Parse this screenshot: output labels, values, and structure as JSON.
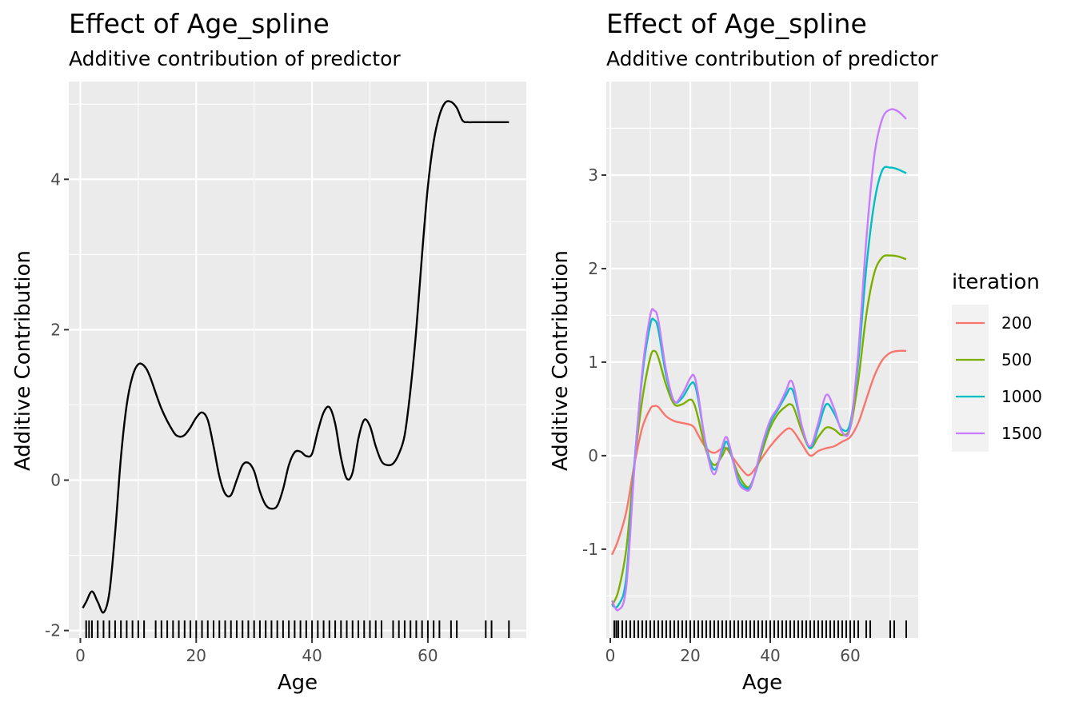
{
  "left_panel": {
    "title": "Effect of Age_spline",
    "subtitle": "Additive contribution of predictor",
    "xlabel": "Age",
    "ylabel": "Additive Contribution"
  },
  "right_panel": {
    "title": "Effect of Age_spline",
    "subtitle": "Additive contribution of predictor",
    "xlabel": "Age",
    "ylabel": "Additive Contribution"
  },
  "legend": {
    "title": "iteration",
    "items": [
      {
        "label": "200",
        "color": "#F8766D"
      },
      {
        "label": "500",
        "color": "#7CAE00"
      },
      {
        "label": "1000",
        "color": "#00BFC4"
      },
      {
        "label": "1500",
        "color": "#C77CFF"
      }
    ]
  },
  "chart_data": [
    {
      "type": "line",
      "title": "Effect of Age_spline",
      "subtitle": "Additive contribution of predictor",
      "xlabel": "Age",
      "ylabel": "Additive Contribution",
      "xlim": [
        -2,
        77
      ],
      "ylim": [
        -2.1,
        5.3
      ],
      "x_ticks": [
        0,
        20,
        40,
        60
      ],
      "y_ticks": [
        -2,
        0,
        2,
        4
      ],
      "grid": true,
      "rug": true,
      "x": [
        0.42,
        1,
        2,
        3,
        4,
        5,
        6,
        7,
        8,
        9,
        10,
        11,
        12,
        14,
        16,
        17,
        18,
        19,
        20,
        21,
        22,
        23,
        24,
        25,
        26,
        27,
        28,
        29,
        30,
        31,
        32,
        33,
        34,
        35,
        36,
        37,
        38,
        39,
        40,
        41,
        42,
        43,
        44,
        45,
        46,
        47,
        48,
        49,
        50,
        51,
        52,
        53,
        54,
        55,
        56,
        57,
        58,
        59,
        60,
        61,
        62,
        63,
        64,
        65,
        66,
        67,
        68,
        69,
        70,
        71,
        72,
        73,
        74
      ],
      "values": [
        -1.7,
        -1.62,
        -1.48,
        -1.62,
        -1.76,
        -1.5,
        -0.7,
        0.3,
        1.0,
        1.38,
        1.54,
        1.52,
        1.38,
        0.95,
        0.65,
        0.58,
        0.6,
        0.7,
        0.83,
        0.9,
        0.8,
        0.45,
        0.05,
        -0.18,
        -0.2,
        0.0,
        0.2,
        0.23,
        0.12,
        -0.15,
        -0.33,
        -0.38,
        -0.34,
        -0.12,
        0.2,
        0.37,
        0.38,
        0.32,
        0.35,
        0.65,
        0.9,
        0.97,
        0.75,
        0.3,
        0.02,
        0.1,
        0.55,
        0.8,
        0.72,
        0.45,
        0.25,
        0.2,
        0.22,
        0.35,
        0.6,
        1.2,
        2.0,
        3.0,
        3.9,
        4.5,
        4.85,
        5.02,
        5.03,
        4.95,
        4.78,
        4.76,
        4.76,
        4.76,
        4.76,
        4.76,
        4.76,
        4.76,
        4.76
      ],
      "rug_x": [
        1,
        1.5,
        2,
        3,
        4,
        5,
        6,
        7,
        8,
        9,
        10,
        11,
        13,
        14,
        15,
        16,
        17,
        18,
        19,
        20,
        21,
        22,
        23,
        24,
        25,
        26,
        27,
        28,
        29,
        30,
        31,
        32,
        33,
        34,
        35,
        36,
        37,
        38,
        39,
        40,
        41,
        42,
        43,
        44,
        45,
        46,
        47,
        48,
        49,
        50,
        51,
        52,
        54,
        55,
        56,
        57,
        58,
        59,
        60,
        61,
        62,
        64,
        65,
        70,
        71,
        74
      ]
    },
    {
      "type": "line",
      "title": "Effect of Age_spline",
      "subtitle": "Additive contribution of predictor",
      "xlabel": "Age",
      "ylabel": "Additive Contribution",
      "xlim": [
        -1,
        77
      ],
      "ylim": [
        -1.95,
        4.0
      ],
      "x_ticks": [
        0,
        20,
        40,
        60
      ],
      "y_ticks": [
        -1,
        0,
        1,
        2,
        3
      ],
      "grid": true,
      "rug": true,
      "x": [
        0.42,
        2,
        4,
        6,
        8,
        10,
        11,
        12,
        14,
        16,
        18,
        20,
        21,
        22,
        24,
        26,
        28,
        29,
        30,
        32,
        34,
        35,
        36,
        38,
        40,
        42,
        44,
        45,
        46,
        48,
        50,
        52,
        54,
        56,
        58,
        60,
        62,
        64,
        66,
        68,
        70,
        72,
        74
      ],
      "series": [
        {
          "name": "200",
          "values": [
            -1.06,
            -0.9,
            -0.6,
            -0.1,
            0.3,
            0.5,
            0.53,
            0.52,
            0.42,
            0.37,
            0.35,
            0.33,
            0.3,
            0.22,
            0.08,
            0.03,
            0.08,
            0.08,
            0.02,
            -0.1,
            -0.2,
            -0.2,
            -0.15,
            -0.02,
            0.1,
            0.2,
            0.28,
            0.29,
            0.25,
            0.12,
            0.0,
            0.05,
            0.08,
            0.1,
            0.15,
            0.2,
            0.35,
            0.6,
            0.85,
            1.02,
            1.1,
            1.12,
            1.12
          ]
        },
        {
          "name": "500",
          "values": [
            -1.6,
            -1.45,
            -1.0,
            -0.1,
            0.6,
            1.05,
            1.12,
            1.05,
            0.75,
            0.55,
            0.55,
            0.6,
            0.55,
            0.4,
            0.05,
            -0.1,
            0.0,
            0.08,
            0.03,
            -0.2,
            -0.33,
            -0.32,
            -0.22,
            0.05,
            0.3,
            0.45,
            0.53,
            0.55,
            0.5,
            0.25,
            0.08,
            0.2,
            0.3,
            0.28,
            0.22,
            0.3,
            0.8,
            1.5,
            1.95,
            2.12,
            2.14,
            2.13,
            2.1
          ]
        },
        {
          "name": "1000",
          "values": [
            -1.6,
            -1.6,
            -1.3,
            -0.1,
            0.85,
            1.4,
            1.45,
            1.35,
            0.85,
            0.58,
            0.62,
            0.76,
            0.77,
            0.6,
            0.1,
            -0.15,
            0.05,
            0.15,
            0.05,
            -0.25,
            -0.35,
            -0.33,
            -0.22,
            0.1,
            0.35,
            0.5,
            0.65,
            0.72,
            0.65,
            0.3,
            0.08,
            0.3,
            0.55,
            0.45,
            0.28,
            0.35,
            1.0,
            2.0,
            2.7,
            3.05,
            3.08,
            3.06,
            3.02
          ]
        },
        {
          "name": "1500",
          "values": [
            -1.55,
            -1.65,
            -1.4,
            -0.15,
            0.9,
            1.5,
            1.55,
            1.45,
            0.9,
            0.58,
            0.66,
            0.83,
            0.85,
            0.65,
            0.08,
            -0.2,
            0.1,
            0.2,
            0.08,
            -0.28,
            -0.37,
            -0.35,
            -0.22,
            0.12,
            0.38,
            0.52,
            0.7,
            0.8,
            0.72,
            0.3,
            0.1,
            0.35,
            0.65,
            0.5,
            0.25,
            0.3,
            1.1,
            2.3,
            3.2,
            3.6,
            3.7,
            3.68,
            3.6
          ]
        }
      ],
      "rug_x": [
        1,
        1.5,
        2,
        3,
        4,
        5,
        6,
        7,
        8,
        9,
        10,
        11,
        12,
        13,
        14,
        15,
        16,
        17,
        18,
        19,
        20,
        21,
        22,
        23,
        24,
        25,
        26,
        27,
        28,
        29,
        30,
        31,
        32,
        33,
        34,
        35,
        36,
        37,
        38,
        39,
        40,
        41,
        42,
        43,
        44,
        45,
        46,
        47,
        48,
        49,
        50,
        51,
        52,
        53,
        54,
        55,
        56,
        57,
        58,
        59,
        60,
        61,
        62,
        64,
        65,
        70,
        71,
        74
      ]
    }
  ]
}
